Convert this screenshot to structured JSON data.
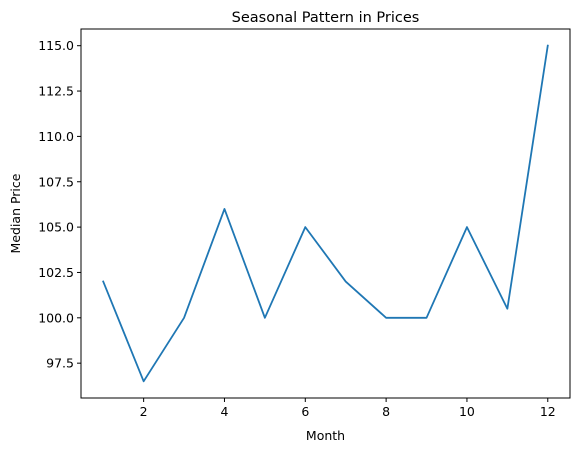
{
  "chart_data": {
    "type": "line",
    "title": "Seasonal Pattern in Prices",
    "xlabel": "Month",
    "ylabel": "Median Price",
    "x": [
      1,
      2,
      3,
      4,
      5,
      6,
      7,
      8,
      9,
      10,
      11,
      12
    ],
    "series": [
      {
        "values": [
          102.0,
          96.5,
          100.0,
          106.0,
          100.0,
          105.0,
          102.0,
          100.0,
          100.0,
          105.0,
          100.5,
          115.0
        ],
        "color": "#1f77b4"
      }
    ],
    "xlim": [
      0.45,
      12.55
    ],
    "ylim": [
      95.58,
      115.92
    ],
    "xticks": [
      2,
      4,
      6,
      8,
      10,
      12
    ],
    "yticks": [
      97.5,
      100.0,
      102.5,
      105.0,
      107.5,
      110.0,
      112.5,
      115.0
    ],
    "ytick_labels": [
      "97.5",
      "100.0",
      "102.5",
      "105.0",
      "107.5",
      "110.0",
      "112.5",
      "115.0"
    ],
    "grid": false,
    "legend": "none"
  }
}
